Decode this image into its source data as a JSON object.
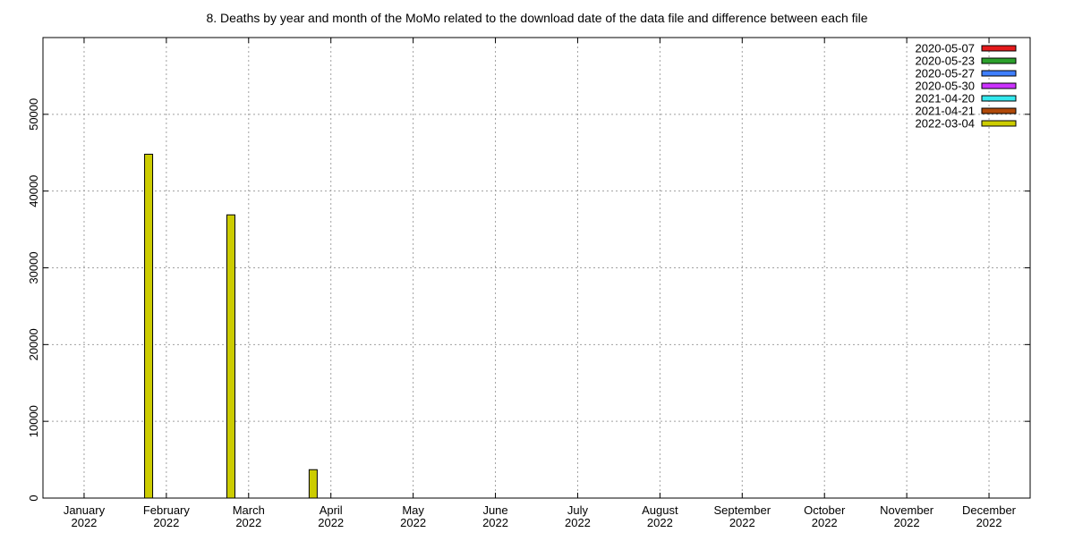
{
  "chart_data": {
    "type": "bar",
    "title": "8. Deaths by year and month of the MoMo related to the download date of the data file and difference between each file",
    "xlabel": "",
    "ylabel": "",
    "ylim": [
      0,
      60000
    ],
    "yticks": [
      0,
      10000,
      20000,
      30000,
      40000,
      50000
    ],
    "grid": true,
    "legend_position": "top-right",
    "categories": [
      {
        "month": "January",
        "year": "2022"
      },
      {
        "month": "February",
        "year": "2022"
      },
      {
        "month": "March",
        "year": "2022"
      },
      {
        "month": "April",
        "year": "2022"
      },
      {
        "month": "May",
        "year": "2022"
      },
      {
        "month": "June",
        "year": "2022"
      },
      {
        "month": "July",
        "year": "2022"
      },
      {
        "month": "August",
        "year": "2022"
      },
      {
        "month": "September",
        "year": "2022"
      },
      {
        "month": "October",
        "year": "2022"
      },
      {
        "month": "November",
        "year": "2022"
      },
      {
        "month": "December",
        "year": "2022"
      }
    ],
    "series": [
      {
        "name": "2020-05-07",
        "color": "#e41a1c",
        "values": [
          null,
          null,
          null,
          null,
          null,
          null,
          null,
          null,
          null,
          null,
          null,
          null
        ]
      },
      {
        "name": "2020-05-23",
        "color": "#2ca02c",
        "values": [
          null,
          null,
          null,
          null,
          null,
          null,
          null,
          null,
          null,
          null,
          null,
          null
        ]
      },
      {
        "name": "2020-05-27",
        "color": "#3f7fff",
        "values": [
          null,
          null,
          null,
          null,
          null,
          null,
          null,
          null,
          null,
          null,
          null,
          null
        ]
      },
      {
        "name": "2020-05-30",
        "color": "#cc33ff",
        "values": [
          null,
          null,
          null,
          null,
          null,
          null,
          null,
          null,
          null,
          null,
          null,
          null
        ]
      },
      {
        "name": "2021-04-20",
        "color": "#33e8ee",
        "values": [
          null,
          null,
          null,
          null,
          null,
          null,
          null,
          null,
          null,
          null,
          null,
          null
        ]
      },
      {
        "name": "2021-04-21",
        "color": "#b04a0a",
        "values": [
          null,
          null,
          null,
          null,
          null,
          null,
          null,
          null,
          null,
          null,
          null,
          null
        ]
      },
      {
        "name": "2022-03-04",
        "color": "#cccc00",
        "values": [
          44800,
          36900,
          3700,
          null,
          null,
          null,
          null,
          null,
          null,
          null,
          null,
          null
        ]
      }
    ]
  }
}
